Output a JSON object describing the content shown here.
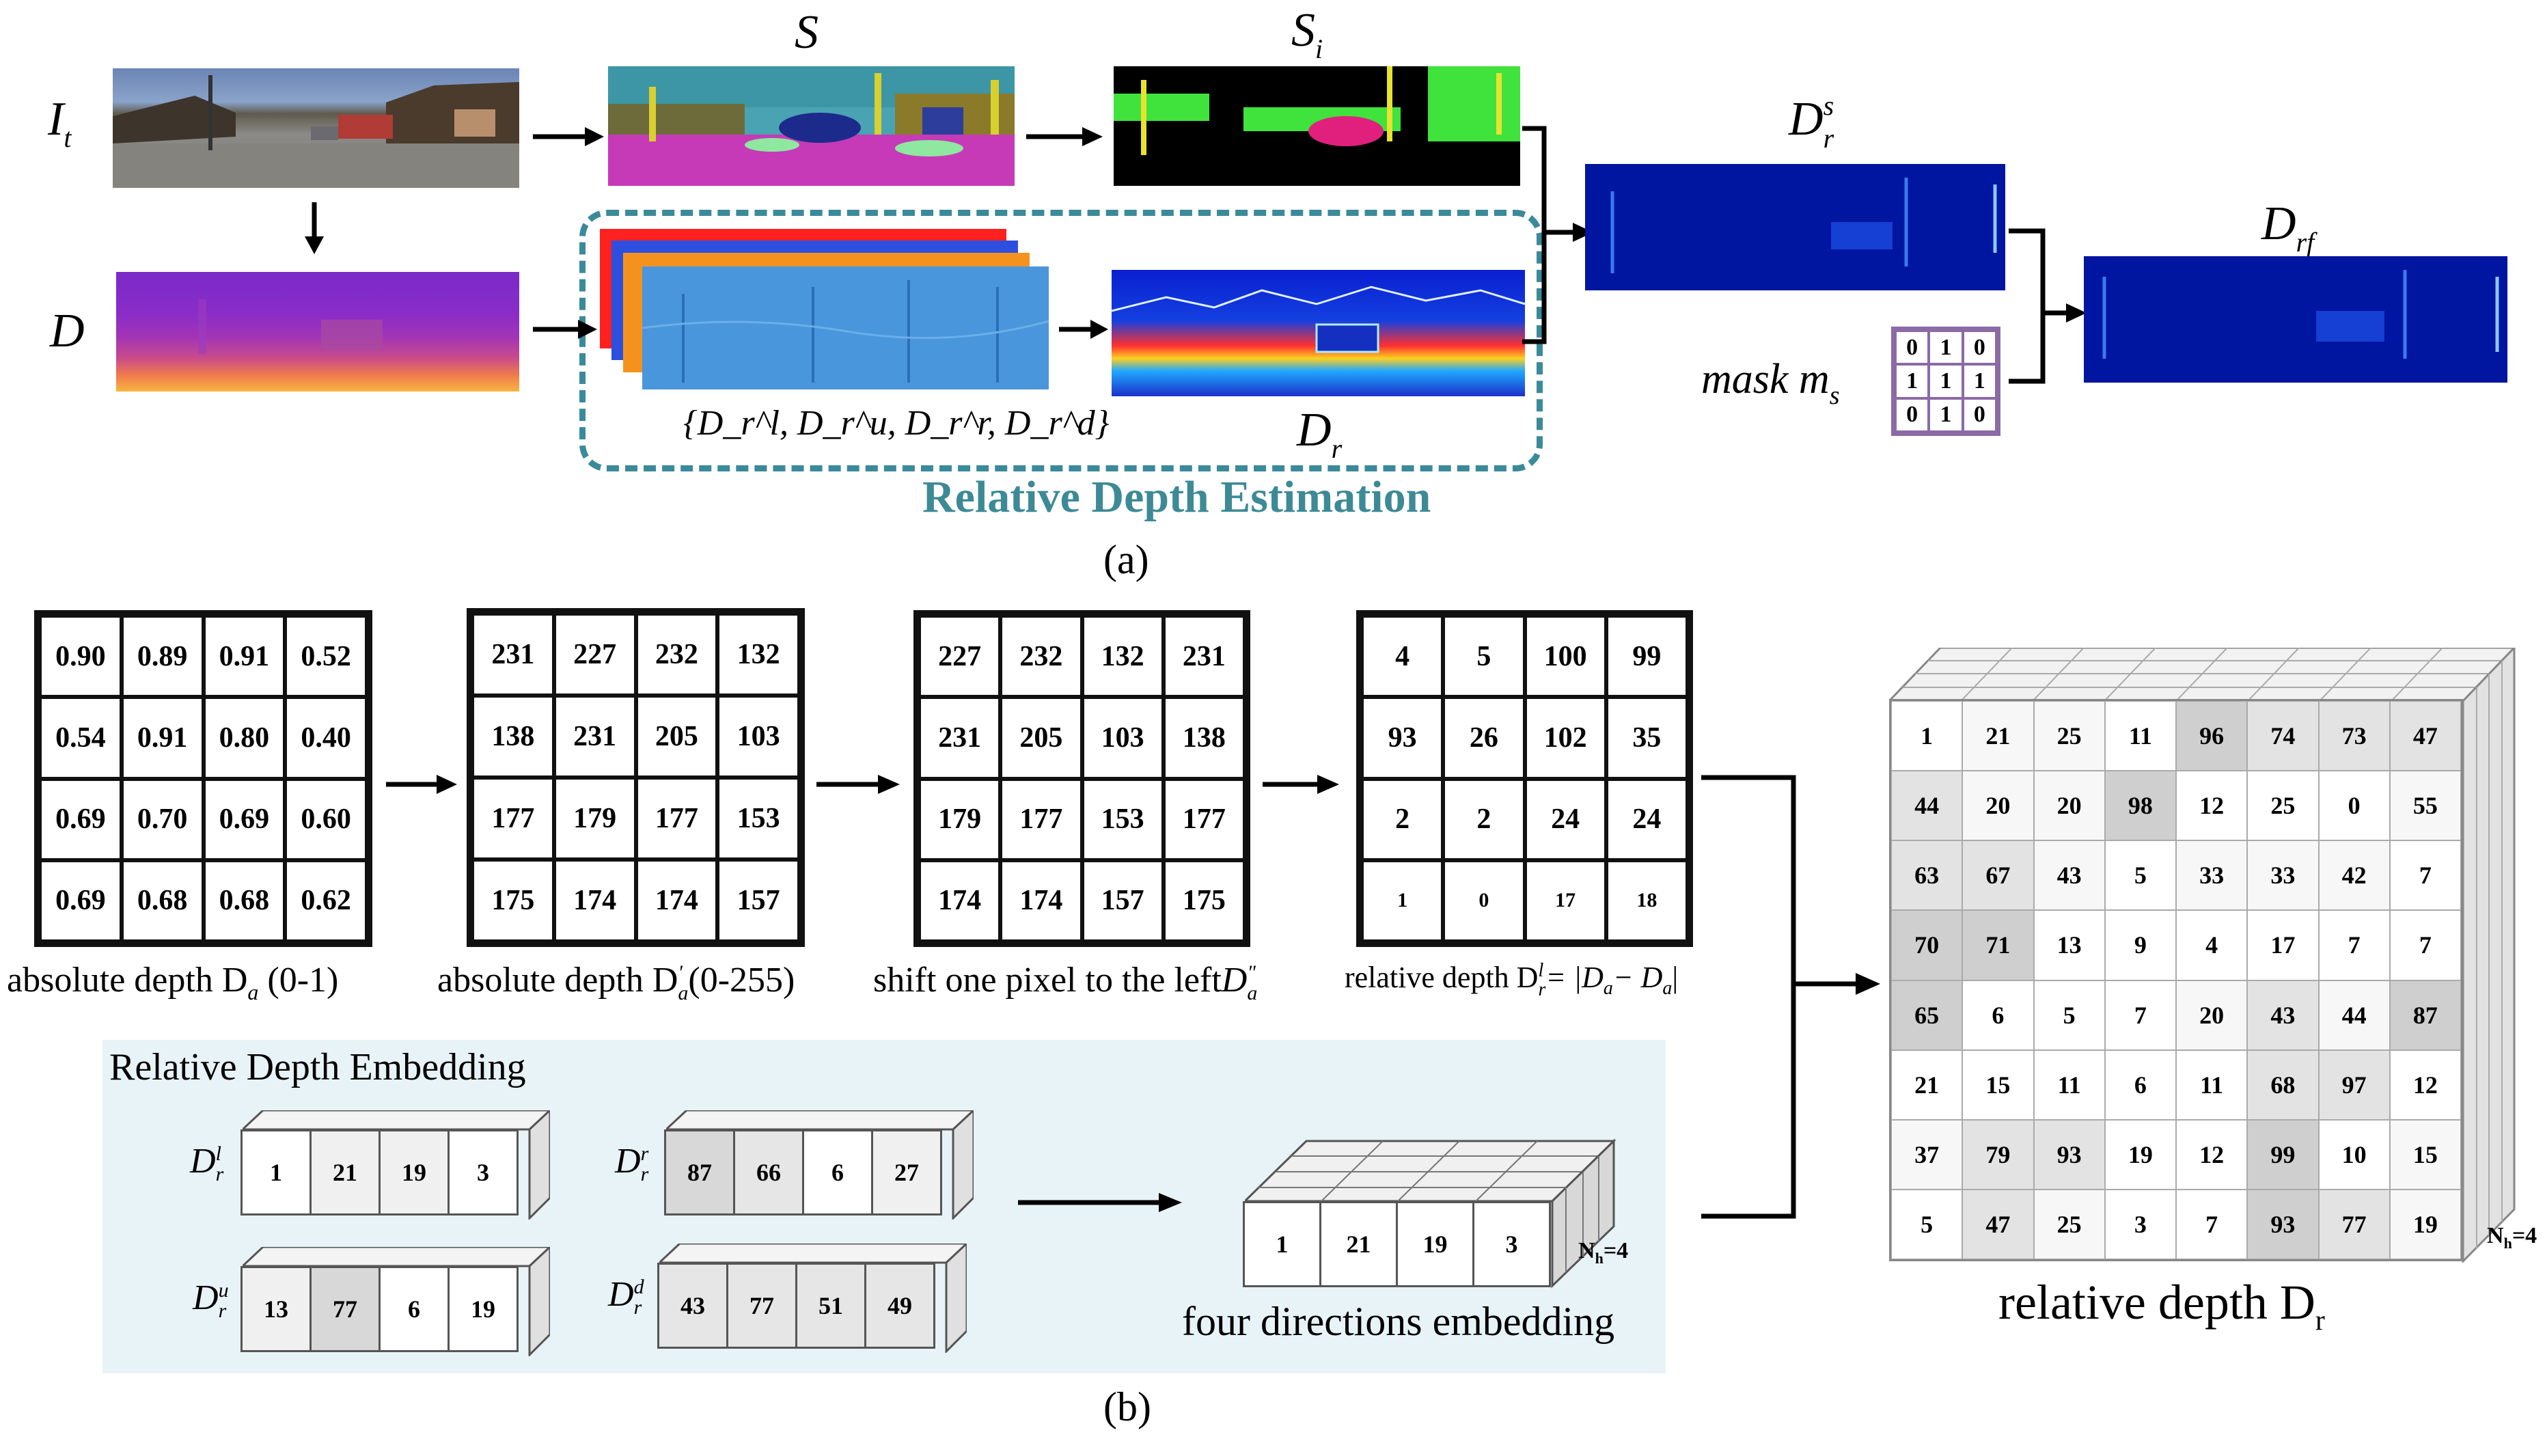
{
  "part_a": {
    "label_It_main": "I",
    "label_It_sub": "t",
    "label_D": "D",
    "label_S": "S",
    "label_Si_main": "S",
    "label_Si_sub": "i",
    "label_Drs_main": "D",
    "label_Drs_sup": "s",
    "label_Drs_sub": "r",
    "label_Drf_main": "D",
    "label_Drf_sub": "rf",
    "label_Dr_main": "D",
    "label_Dr_sub": "r",
    "label_set": "{D_r^l, D_r^u, D_r^r, D_r^d}",
    "label_mask": "mask m",
    "label_mask_sub": "s",
    "mask_values": [
      "0",
      "1",
      "0",
      "1",
      "1",
      "1",
      "0",
      "1",
      "0"
    ],
    "box_title": "Relative Depth Estimation",
    "caption": "(a)",
    "colors": {
      "box_border": "#3a8a9a",
      "box_title": "#3d8a96",
      "mask_border": "#8b6aa6"
    }
  },
  "part_b": {
    "grid1": [
      "0.90",
      "0.89",
      "0.91",
      "0.52",
      "0.54",
      "0.91",
      "0.80",
      "0.40",
      "0.69",
      "0.70",
      "0.69",
      "0.60",
      "0.69",
      "0.68",
      "0.68",
      "0.62"
    ],
    "grid1_caption": "absolute depth D",
    "grid1_caption_sub": "a",
    "grid1_caption_range": "(0-1)",
    "grid2": [
      "231",
      "227",
      "232",
      "132",
      "138",
      "231",
      "205",
      "103",
      "177",
      "179",
      "177",
      "153",
      "175",
      "174",
      "174",
      "157"
    ],
    "grid2_caption": "absolute depth D",
    "grid2_caption_sub": "a",
    "grid2_caption_sup": "'",
    "grid2_caption_range": "(0-255)",
    "grid3": [
      "227",
      "232",
      "132",
      "231",
      "231",
      "205",
      "103",
      "138",
      "179",
      "177",
      "153",
      "177",
      "174",
      "174",
      "157",
      "175"
    ],
    "grid3_caption": "shift one pixel to the left",
    "grid3_caption_var": "D",
    "grid3_caption_sub": "a",
    "grid3_caption_sup": "\"",
    "grid4": [
      "4",
      "5",
      "100",
      "99",
      "93",
      "26",
      "102",
      "35",
      "2",
      "2",
      "24",
      "24",
      "1",
      "0",
      "17",
      "18"
    ],
    "grid4_caption": "relative depth D",
    "grid4_caption_sub": "r",
    "grid4_caption_sup": "l",
    "grid4_caption_eq": "= |D",
    "grid4_caption_a1": "a",
    "grid4_caption_minus": "− D",
    "grid4_caption_a2": "a",
    "grid4_caption_end": "|",
    "embedding_title": "Relative Depth Embedding",
    "emb_l_label_main": "D",
    "emb_l_label_sup": "l",
    "emb_l_label_sub": "r",
    "emb_l": [
      "1",
      "21",
      "19",
      "3"
    ],
    "emb_r_label_main": "D",
    "emb_r_label_sup": "r",
    "emb_r_label_sub": "r",
    "emb_r": [
      "87",
      "66",
      "6",
      "27"
    ],
    "emb_u_label_main": "D",
    "emb_u_label_sup": "u",
    "emb_u_label_sub": "r",
    "emb_u": [
      "13",
      "77",
      "6",
      "19"
    ],
    "emb_d_label_main": "D",
    "emb_d_label_sup": "d",
    "emb_d_label_sub": "r",
    "emb_d": [
      "43",
      "77",
      "51",
      "49"
    ],
    "four_dir": [
      "1",
      "21",
      "19",
      "3"
    ],
    "four_dir_caption": "four directions embedding",
    "nh_label": "N",
    "nh_sub": "h",
    "nh_value": "=4",
    "big_cube": [
      [
        "1",
        "21",
        "25",
        "11",
        "96",
        "74",
        "73",
        "47"
      ],
      [
        "44",
        "20",
        "20",
        "98",
        "12",
        "25",
        "0",
        "55"
      ],
      [
        "63",
        "67",
        "43",
        "5",
        "33",
        "33",
        "42",
        "7"
      ],
      [
        "70",
        "71",
        "13",
        "9",
        "4",
        "17",
        "7",
        "7"
      ],
      [
        "65",
        "6",
        "5",
        "7",
        "20",
        "43",
        "44",
        "87"
      ],
      [
        "21",
        "15",
        "11",
        "6",
        "11",
        "68",
        "97",
        "12"
      ],
      [
        "37",
        "79",
        "93",
        "19",
        "12",
        "99",
        "10",
        "15"
      ],
      [
        "5",
        "47",
        "25",
        "3",
        "7",
        "93",
        "77",
        "19"
      ]
    ],
    "big_cube_shade": [
      [
        "w",
        "l",
        "l",
        "w",
        "d",
        "m",
        "m",
        "m"
      ],
      [
        "m",
        "l",
        "l",
        "d",
        "w",
        "w",
        "w",
        "l"
      ],
      [
        "m",
        "m",
        "l",
        "w",
        "l",
        "l",
        "l",
        "w"
      ],
      [
        "d",
        "d",
        "w",
        "w",
        "w",
        "w",
        "w",
        "w"
      ],
      [
        "d",
        "w",
        "w",
        "w",
        "l",
        "m",
        "l",
        "d"
      ],
      [
        "w",
        "w",
        "w",
        "w",
        "w",
        "m",
        "m",
        "w"
      ],
      [
        "l",
        "m",
        "m",
        "w",
        "w",
        "d",
        "w",
        "l"
      ],
      [
        "w",
        "m",
        "l",
        "w",
        "w",
        "d",
        "m",
        "l"
      ]
    ],
    "big_cube_caption": "relative depth D",
    "big_cube_caption_sub": "r",
    "caption": "(b)",
    "colors": {
      "panel_bg": "#e8f3f8"
    }
  }
}
